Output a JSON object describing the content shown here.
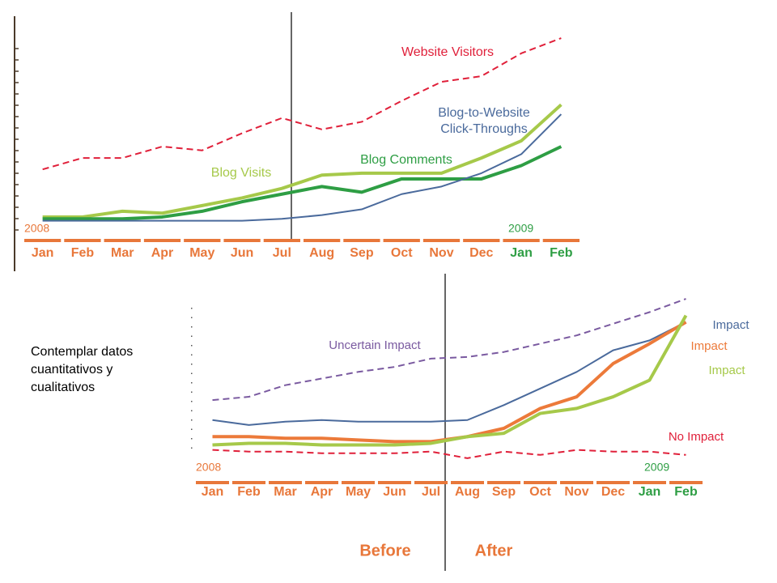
{
  "caption": "Contemplar datos cuantitativos y cualitativos",
  "chart_data": [
    {
      "type": "line",
      "categories": [
        "Jan",
        "Feb",
        "Mar",
        "Apr",
        "May",
        "Jun",
        "Jul",
        "Aug",
        "Sep",
        "Oct",
        "Nov",
        "Dec",
        "Jan",
        "Feb"
      ],
      "category_colors": [
        "#e8773a",
        "#e8773a",
        "#e8773a",
        "#e8773a",
        "#e8773a",
        "#e8773a",
        "#e8773a",
        "#e8773a",
        "#e8773a",
        "#e8773a",
        "#e8773a",
        "#e8773a",
        "#2e9e44",
        "#2e9e44"
      ],
      "ylim": [
        0,
        100
      ],
      "series": [
        {
          "name": "Website Visitors",
          "color": "#e0203a",
          "dashed": true,
          "width": 2,
          "values": [
            28,
            34,
            34,
            40,
            38,
            47,
            55,
            49,
            53,
            64,
            74,
            77,
            89,
            97
          ]
        },
        {
          "name": "Blog Visits",
          "color": "#a6c94a",
          "width": 4,
          "values": [
            3,
            3,
            6,
            5,
            9,
            13,
            18,
            25,
            26,
            26,
            26,
            34,
            43,
            62
          ]
        },
        {
          "name": "Blog Comments",
          "color": "#2e9e44",
          "width": 4,
          "values": [
            2,
            2,
            2,
            3,
            6,
            11,
            15,
            19,
            16,
            23,
            23,
            23,
            30,
            40
          ]
        },
        {
          "name": "Blog-to-Website Click-Throughs",
          "color": "#4a6a9c",
          "width": 2,
          "values": [
            1,
            1,
            1,
            1,
            1,
            1,
            2,
            4,
            7,
            15,
            19,
            26,
            36,
            57
          ]
        }
      ],
      "annotations": [
        {
          "text": "Website Visitors",
          "color": "#e0203a"
        },
        {
          "text": "Blog-to-Website",
          "color": "#4a6a9c"
        },
        {
          "text": "Click-Throughs",
          "color": "#4a6a9c"
        },
        {
          "text": "Blog Comments",
          "color": "#2e9e44"
        },
        {
          "text": "Blog Visits",
          "color": "#a6c94a"
        },
        {
          "text": "2008",
          "color": "#e8773a"
        },
        {
          "text": "2009",
          "color": "#2e9e44"
        }
      ]
    },
    {
      "type": "line",
      "categories": [
        "Jan",
        "Feb",
        "Mar",
        "Apr",
        "May",
        "Jun",
        "Jul",
        "Aug",
        "Sep",
        "Oct",
        "Nov",
        "Dec",
        "Jan",
        "Feb"
      ],
      "category_colors": [
        "#e8773a",
        "#e8773a",
        "#e8773a",
        "#e8773a",
        "#e8773a",
        "#e8773a",
        "#e8773a",
        "#e8773a",
        "#e8773a",
        "#e8773a",
        "#e8773a",
        "#e8773a",
        "#2e9e44",
        "#2e9e44"
      ],
      "ylim": [
        0,
        100
      ],
      "series": [
        {
          "name": "Uncertain Impact",
          "color": "#7a5aa0",
          "dashed": true,
          "width": 2,
          "values": [
            37,
            39,
            46,
            50,
            54,
            57,
            62,
            63,
            66,
            71,
            76,
            83,
            90,
            98
          ]
        },
        {
          "name": "Impact",
          "color": "#4a6a9c",
          "width": 2,
          "values": [
            25,
            22,
            24,
            25,
            24,
            24,
            24,
            25,
            34,
            44,
            54,
            67,
            73,
            84
          ]
        },
        {
          "name": "Impact",
          "color": "#ec7a3a",
          "width": 4,
          "values": [
            15,
            15,
            14,
            14,
            13,
            12,
            12,
            15,
            20,
            32,
            39,
            59,
            71,
            84
          ]
        },
        {
          "name": "Impact",
          "color": "#a6c94a",
          "width": 4,
          "values": [
            10,
            11,
            11,
            10,
            10,
            10,
            11,
            15,
            17,
            29,
            32,
            39,
            49,
            88
          ]
        },
        {
          "name": "No Impact",
          "color": "#e0203a",
          "dashed": true,
          "width": 2,
          "values": [
            7,
            6,
            6,
            5,
            5,
            5,
            6,
            2,
            6,
            4,
            7,
            6,
            6,
            4
          ]
        }
      ],
      "annotations": [
        {
          "text": "Uncertain Impact",
          "color": "#7a5aa0"
        },
        {
          "text": "Impact",
          "color": "#4a6a9c"
        },
        {
          "text": "Impact",
          "color": "#ec7a3a"
        },
        {
          "text": "Impact",
          "color": "#a6c94a"
        },
        {
          "text": "No Impact",
          "color": "#e0203a"
        },
        {
          "text": "2008",
          "color": "#e8773a"
        },
        {
          "text": "2009",
          "color": "#2e9e44"
        },
        {
          "text": "Before",
          "color": "#e8773a"
        },
        {
          "text": "After",
          "color": "#e8773a"
        }
      ]
    }
  ]
}
